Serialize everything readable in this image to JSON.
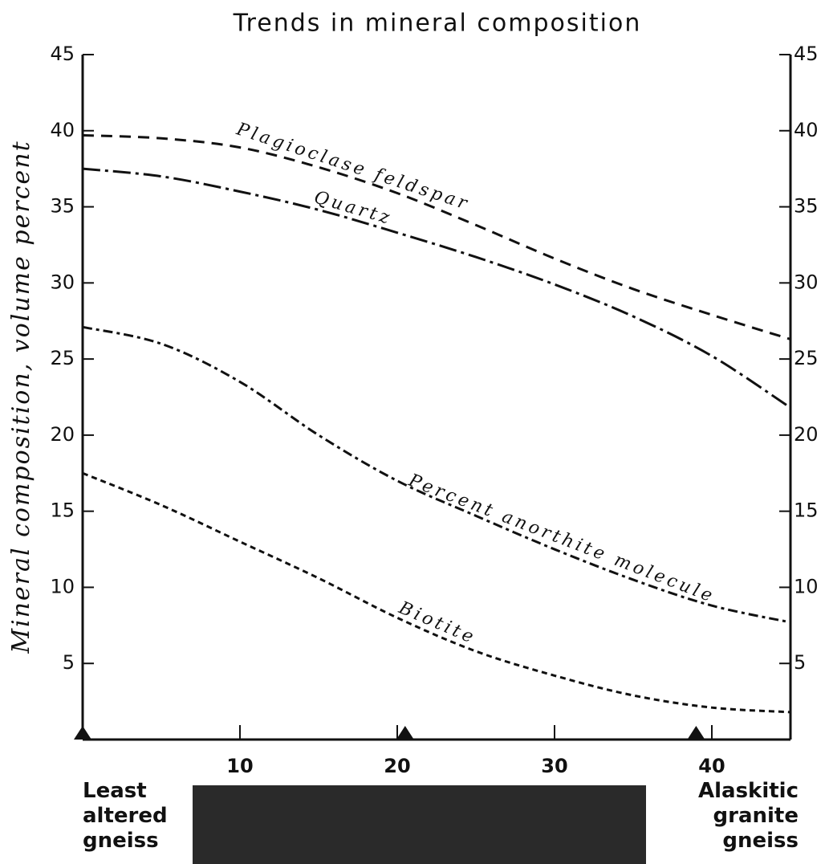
{
  "chart_data": {
    "type": "line",
    "title": "Trends in mineral composition",
    "y_label": "Mineral composition, volume percent",
    "x_start_label": "Least altered gneiss",
    "x_end_label": "Alaskitic granite gneiss",
    "x": [
      0,
      5,
      10,
      15,
      20,
      25,
      30,
      35,
      40,
      45
    ],
    "series": [
      {
        "name": "Plagioclase feldspar",
        "color": "#111111",
        "dash": "14 9",
        "values": [
          39.7,
          39.5,
          38.9,
          37.6,
          35.9,
          33.8,
          31.6,
          29.6,
          27.9,
          26.3
        ]
      },
      {
        "name": "Quartz",
        "color": "#111111",
        "dash": "22 6 4 6",
        "values": [
          37.5,
          37.0,
          36.0,
          34.8,
          33.3,
          31.7,
          29.9,
          27.8,
          25.2,
          21.8
        ]
      },
      {
        "name": "Percent anorthite molecule",
        "color": "#111111",
        "dash": "12 5 4 5",
        "values": [
          27.1,
          26.0,
          23.5,
          20.0,
          17.0,
          14.7,
          12.5,
          10.5,
          8.8,
          7.7
        ]
      },
      {
        "name": "Biotite",
        "color": "#111111",
        "dash": "7 5",
        "values": [
          17.5,
          15.4,
          13.0,
          10.6,
          8.0,
          5.8,
          4.2,
          2.9,
          2.1,
          1.8
        ]
      }
    ],
    "sample_markers": [
      0,
      20.5,
      39
    ],
    "xlim": [
      0,
      45
    ],
    "ylim": [
      0,
      45
    ],
    "xticks": [
      10,
      20,
      30,
      40
    ],
    "yticks": [
      5,
      10,
      15,
      20,
      25,
      30,
      35,
      40,
      45
    ]
  }
}
